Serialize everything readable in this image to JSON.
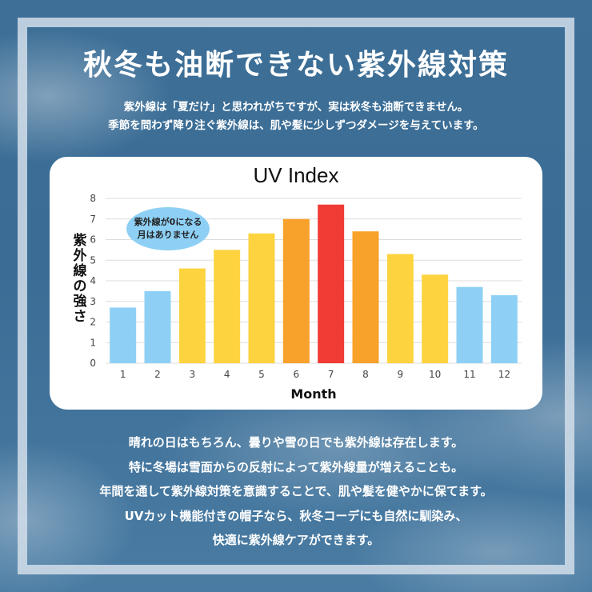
{
  "header": {
    "title": "秋冬も油断できない紫外線対策",
    "intro_lines": [
      "紫外線は「夏だけ」と思われがちですが、実は秋冬も油断できません。",
      "季節を問わず降り注ぐ紫外線は、肌や髪に少しずつダメージを与えています。"
    ]
  },
  "chart_data": {
    "type": "bar",
    "title": "UV Index",
    "xlabel": "Month",
    "ylabel": "紫外線の強さ",
    "ylim": [
      0,
      8
    ],
    "yticks": [
      0,
      1,
      2,
      3,
      4,
      5,
      6,
      7,
      8
    ],
    "grid": true,
    "categories": [
      "1",
      "2",
      "3",
      "4",
      "5",
      "6",
      "7",
      "8",
      "9",
      "10",
      "11",
      "12"
    ],
    "values": [
      2.7,
      3.5,
      4.6,
      5.5,
      6.3,
      7.0,
      7.7,
      6.4,
      5.3,
      4.3,
      3.7,
      3.3
    ],
    "bar_colors": [
      "#8ed0f5",
      "#8ed0f5",
      "#fdd33f",
      "#fdd33f",
      "#fdd33f",
      "#f8a12b",
      "#f13c35",
      "#f8a12b",
      "#fdd33f",
      "#fdd33f",
      "#8ed0f5",
      "#8ed0f5"
    ],
    "annotation": {
      "lines": [
        "紫外線が0になる",
        "月はありません"
      ],
      "fill": "#8ed0f5"
    }
  },
  "body": {
    "lines": [
      "晴れの日はもちろん、曇りや雪の日でも紫外線は存在します。",
      "特に冬場は雪面からの反射によって紫外線量が増えることも。",
      "年間を通して紫外線対策を意識することで、肌や髪を健やかに保てます。",
      "UVカット機能付きの帽子なら、秋冬コーデにも自然に馴染み、",
      "快適に紫外線ケアができます。"
    ]
  },
  "colors": {
    "background": "#3d6f97",
    "frame": "#d2deea",
    "text": "#ffffff",
    "grid": "#dddddd"
  }
}
